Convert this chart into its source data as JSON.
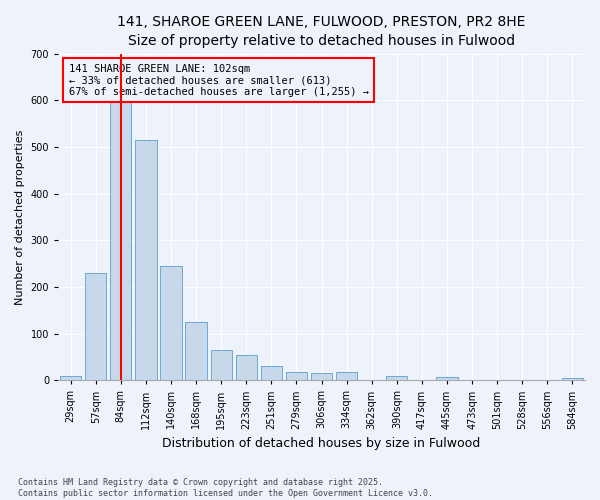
{
  "title": "141, SHAROE GREEN LANE, FULWOOD, PRESTON, PR2 8HE",
  "subtitle": "Size of property relative to detached houses in Fulwood",
  "xlabel": "Distribution of detached houses by size in Fulwood",
  "ylabel": "Number of detached properties",
  "categories": [
    "29sqm",
    "57sqm",
    "84sqm",
    "112sqm",
    "140sqm",
    "168sqm",
    "195sqm",
    "223sqm",
    "251sqm",
    "279sqm",
    "306sqm",
    "334sqm",
    "362sqm",
    "390sqm",
    "417sqm",
    "445sqm",
    "473sqm",
    "501sqm",
    "528sqm",
    "556sqm",
    "584sqm"
  ],
  "values": [
    10,
    230,
    620,
    515,
    245,
    125,
    65,
    55,
    30,
    18,
    15,
    18,
    0,
    10,
    0,
    8,
    0,
    0,
    0,
    0,
    5
  ],
  "bar_color": "#c8d8eb",
  "bar_edge_color": "#6aaad4",
  "ref_line_color": "red",
  "ref_line_x": 2.0,
  "annotation_text": "141 SHAROE GREEN LANE: 102sqm\n← 33% of detached houses are smaller (613)\n67% of semi-detached houses are larger (1,255) →",
  "annotation_box_color": "red",
  "footer": "Contains HM Land Registry data © Crown copyright and database right 2025.\nContains public sector information licensed under the Open Government Licence v3.0.",
  "ylim": [
    0,
    700
  ],
  "yticks": [
    0,
    100,
    200,
    300,
    400,
    500,
    600,
    700
  ],
  "background_color": "#eef2fb",
  "grid_color": "#ffffff",
  "title_fontsize": 10,
  "subtitle_fontsize": 9,
  "axis_label_fontsize": 8,
  "tick_fontsize": 7
}
